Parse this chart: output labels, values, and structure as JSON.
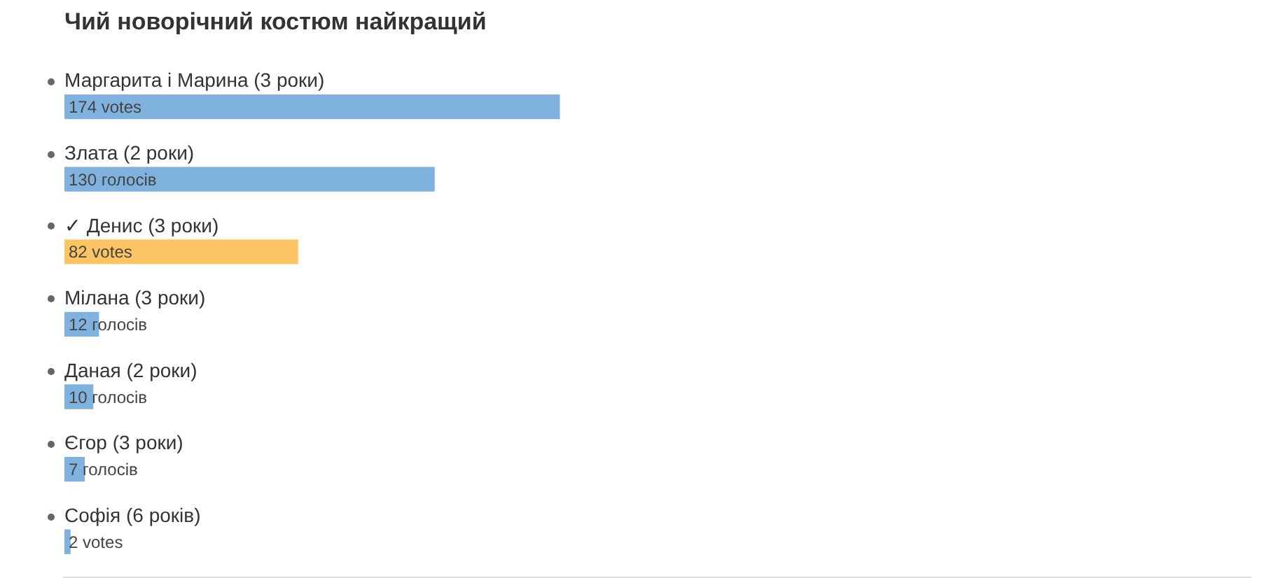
{
  "chart_data": {
    "type": "bar",
    "orientation": "horizontal",
    "title": "Чий новорічний костюм найкращий",
    "categories": [
      "Маргарита і Марина (3 роки)",
      "Злата (2 роки)",
      "✓ Денис (3 роки)",
      "Мілана (3 роки)",
      "Даная (2 роки)",
      "Єгор (3 роки)",
      "Софія (6 років)"
    ],
    "values": [
      174,
      130,
      82,
      12,
      10,
      7,
      2
    ],
    "colors": [
      "#7fb2de",
      "#7fb2de",
      "#fdc463",
      "#7fb2de",
      "#7fb2de",
      "#7fb2de",
      "#7fb2de"
    ],
    "value_labels": [
      "174 votes",
      "130 голосів",
      "82 votes",
      "12 голосів",
      "10 голосів",
      "7 голосів",
      "2 votes"
    ],
    "xlim": [
      0,
      417
    ],
    "tick_labels": "y",
    "legend": false
  }
}
